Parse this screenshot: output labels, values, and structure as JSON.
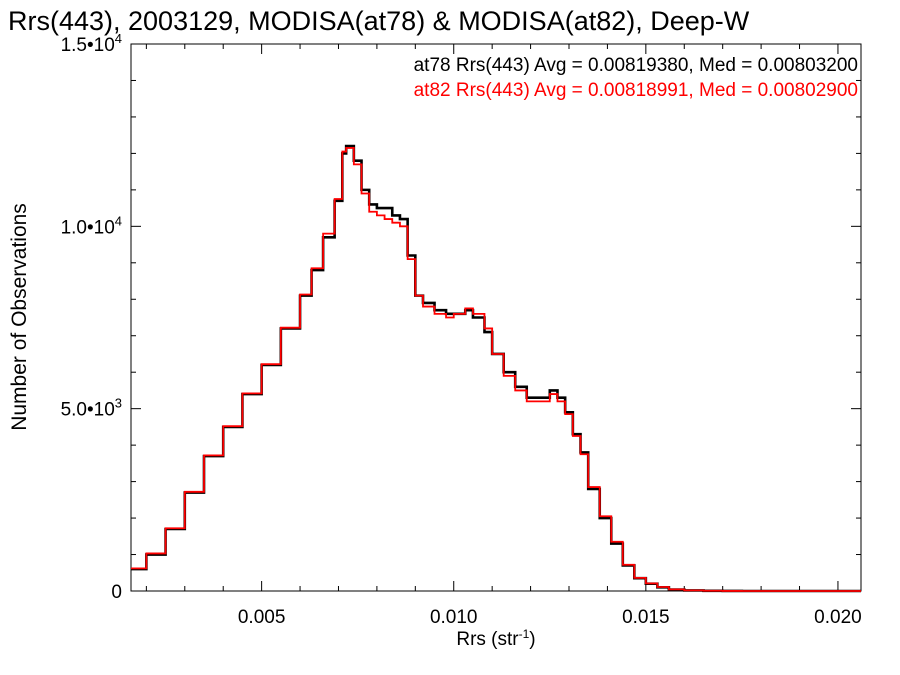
{
  "chart_data": {
    "type": "line",
    "title": "Rrs(443), 2003129, MODISA(at78) & MODISA(at82), Deep-W",
    "xlabel": "Rrs (str",
    "xlabel_superscript": "-1",
    "xlabel_suffix": ")",
    "ylabel": "Number of Observations",
    "xlim": [
      0.0016,
      0.0206
    ],
    "ylim": [
      0,
      15000
    ],
    "x_ticks": [
      {
        "value": 0.005,
        "label": "0.005"
      },
      {
        "value": 0.01,
        "label": "0.010"
      },
      {
        "value": 0.015,
        "label": "0.015"
      },
      {
        "value": 0.02,
        "label": "0.020"
      }
    ],
    "y_ticks": [
      {
        "value": 0,
        "mantissa": "0",
        "exponent": ""
      },
      {
        "value": 5000,
        "mantissa": "5.0•10",
        "exponent": "3"
      },
      {
        "value": 10000,
        "mantissa": "1.0•10",
        "exponent": "4"
      },
      {
        "value": 15000,
        "mantissa": "1.5•10",
        "exponent": "4"
      }
    ],
    "grid": false,
    "legend_position": "top-right",
    "legend": [
      {
        "text": "at78 Rrs(443) Avg = 0.00819380, Med = 0.00803200",
        "color": "#000000"
      },
      {
        "text": "at82 Rrs(443) Avg = 0.00818991, Med = 0.00802900",
        "color": "#ff0000"
      }
    ],
    "series": [
      {
        "color": "#000000",
        "x": [
          0.0016,
          0.002,
          0.0025,
          0.003,
          0.0035,
          0.004,
          0.0045,
          0.005,
          0.0055,
          0.006,
          0.0063,
          0.0066,
          0.0069,
          0.0071,
          0.0072,
          0.0074,
          0.0076,
          0.0078,
          0.008,
          0.0082,
          0.0084,
          0.0086,
          0.0088,
          0.009,
          0.0092,
          0.0095,
          0.0098,
          0.01,
          0.0103,
          0.0105,
          0.0108,
          0.011,
          0.0113,
          0.0116,
          0.0119,
          0.0122,
          0.0125,
          0.0127,
          0.0129,
          0.0131,
          0.0133,
          0.0135,
          0.0138,
          0.0141,
          0.0144,
          0.0147,
          0.015,
          0.0153,
          0.0156,
          0.016,
          0.0165,
          0.017,
          0.0175,
          0.018,
          0.019,
          0.0206
        ],
        "y": [
          600,
          1000,
          1700,
          2700,
          3700,
          4500,
          5400,
          6200,
          7200,
          8100,
          8800,
          9700,
          10700,
          12000,
          12200,
          11800,
          11000,
          10600,
          10500,
          10500,
          10300,
          10200,
          9200,
          8100,
          7900,
          7700,
          7600,
          7600,
          7700,
          7500,
          7100,
          6500,
          6000,
          5600,
          5300,
          5300,
          5500,
          5300,
          4900,
          4300,
          3800,
          2800,
          2000,
          1300,
          700,
          350,
          200,
          100,
          40,
          15,
          5,
          2,
          0,
          0,
          0,
          0
        ]
      },
      {
        "color": "#ff0000",
        "x": [
          0.0016,
          0.002,
          0.0025,
          0.003,
          0.0035,
          0.004,
          0.0045,
          0.005,
          0.0055,
          0.006,
          0.0063,
          0.0066,
          0.0069,
          0.0071,
          0.0072,
          0.0074,
          0.0076,
          0.0078,
          0.008,
          0.0082,
          0.0084,
          0.0086,
          0.0088,
          0.009,
          0.0092,
          0.0095,
          0.0098,
          0.01,
          0.0103,
          0.0105,
          0.0108,
          0.011,
          0.0113,
          0.0116,
          0.0119,
          0.0122,
          0.0125,
          0.0127,
          0.0129,
          0.0131,
          0.0133,
          0.0135,
          0.0138,
          0.0141,
          0.0144,
          0.0147,
          0.015,
          0.0153,
          0.0156,
          0.016,
          0.0165,
          0.017,
          0.0175,
          0.018,
          0.019,
          0.0206
        ],
        "y": [
          620,
          1030,
          1720,
          2720,
          3720,
          4520,
          5420,
          6220,
          7220,
          8130,
          8850,
          9800,
          10750,
          12050,
          12150,
          11700,
          10900,
          10400,
          10300,
          10200,
          10100,
          10000,
          9100,
          8100,
          7800,
          7600,
          7500,
          7600,
          7750,
          7600,
          7200,
          6500,
          5900,
          5500,
          5200,
          5200,
          5400,
          5200,
          4850,
          4250,
          3750,
          2850,
          2050,
          1350,
          720,
          360,
          210,
          110,
          45,
          18,
          6,
          2,
          0,
          0,
          0,
          0
        ]
      }
    ]
  }
}
